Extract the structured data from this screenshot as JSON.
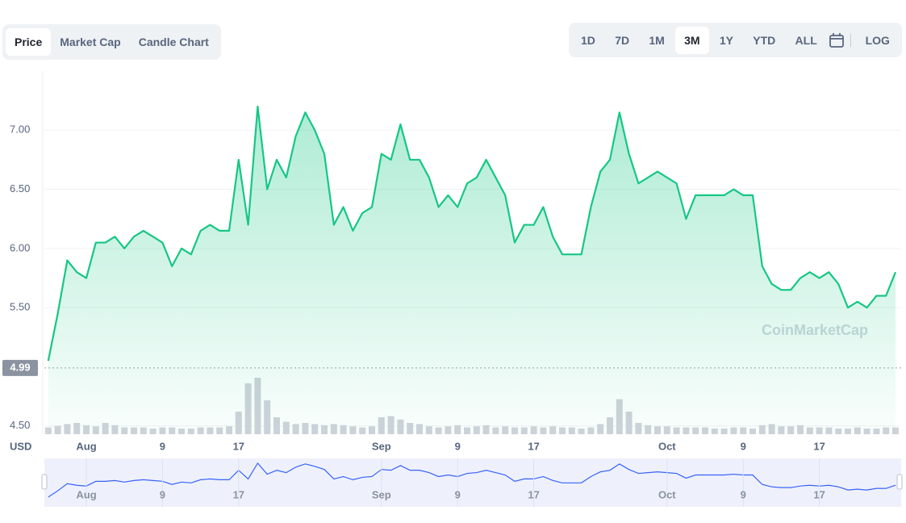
{
  "tabs": {
    "chart_type": [
      "Price",
      "Market Cap",
      "Candle Chart"
    ],
    "range": [
      "1D",
      "7D",
      "1M",
      "3M",
      "1Y",
      "YTD",
      "ALL"
    ],
    "scale": "LOG"
  },
  "chart_data": {
    "type": "area",
    "currency": "USD",
    "watermark": "CoinMarketCap",
    "categories": [
      null,
      null,
      null,
      null,
      "Aug",
      null,
      null,
      null,
      null,
      null,
      null,
      null,
      "9",
      null,
      null,
      null,
      null,
      null,
      null,
      null,
      "17",
      null,
      null,
      null,
      null,
      null,
      null,
      null,
      null,
      null,
      null,
      null,
      null,
      null,
      null,
      "Sep",
      null,
      null,
      null,
      null,
      null,
      null,
      null,
      "9",
      null,
      null,
      null,
      null,
      null,
      null,
      null,
      "17",
      null,
      null,
      null,
      null,
      null,
      null,
      null,
      null,
      null,
      null,
      null,
      null,
      null,
      "Oct",
      null,
      null,
      null,
      null,
      null,
      null,
      null,
      "9",
      null,
      null,
      null,
      null,
      null,
      null,
      null,
      "17",
      null,
      null,
      null,
      null,
      null,
      null,
      null,
      null
    ],
    "series": [
      {
        "color": "#16c784",
        "values": [
          5.05,
          5.45,
          5.9,
          5.8,
          5.75,
          6.05,
          6.05,
          6.1,
          6.0,
          6.1,
          6.15,
          6.1,
          6.05,
          5.85,
          6.0,
          5.95,
          6.15,
          6.2,
          6.15,
          6.15,
          6.75,
          6.2,
          7.2,
          6.5,
          6.75,
          6.6,
          6.95,
          7.15,
          7.0,
          6.8,
          6.2,
          6.35,
          6.15,
          6.3,
          6.35,
          6.8,
          6.75,
          7.05,
          6.75,
          6.75,
          6.6,
          6.35,
          6.45,
          6.35,
          6.55,
          6.6,
          6.75,
          6.6,
          6.45,
          6.05,
          6.2,
          6.2,
          6.35,
          6.1,
          5.95,
          5.95,
          5.95,
          6.35,
          6.65,
          6.75,
          7.15,
          6.8,
          6.55,
          6.6,
          6.65,
          6.6,
          6.55,
          6.25,
          6.45,
          6.45,
          6.45,
          6.45,
          6.5,
          6.45,
          6.45,
          5.85,
          5.7,
          5.65,
          5.65,
          5.75,
          5.8,
          5.75,
          5.8,
          5.7,
          5.5,
          5.55,
          5.5,
          5.6,
          5.6,
          5.8
        ]
      }
    ],
    "volume": {
      "color": "#cfd3da",
      "ylim": [
        0,
        100
      ],
      "values": [
        12,
        15,
        18,
        20,
        16,
        14,
        20,
        16,
        12,
        12,
        12,
        10,
        12,
        12,
        10,
        10,
        12,
        12,
        12,
        14,
        40,
        90,
        100,
        60,
        30,
        22,
        18,
        20,
        18,
        16,
        18,
        16,
        14,
        12,
        14,
        30,
        32,
        26,
        20,
        18,
        14,
        12,
        14,
        16,
        12,
        14,
        16,
        12,
        14,
        12,
        12,
        14,
        12,
        14,
        12,
        12,
        10,
        12,
        18,
        30,
        62,
        40,
        20,
        16,
        14,
        14,
        12,
        12,
        12,
        12,
        10,
        10,
        12,
        12,
        10,
        16,
        18,
        14,
        14,
        16,
        12,
        12,
        12,
        10,
        10,
        12,
        10,
        10,
        12,
        12
      ]
    },
    "start_price": 4.99,
    "ylim": [
      4.43,
      7.5
    ],
    "yticks": [
      {
        "value": 4.5,
        "label": "4.50"
      },
      {
        "value": 5.5,
        "label": "5.50"
      },
      {
        "value": 6,
        "label": "6.00"
      },
      {
        "value": 6.5,
        "label": "6.50"
      },
      {
        "value": 7,
        "label": "7.00"
      }
    ],
    "grid": true
  }
}
